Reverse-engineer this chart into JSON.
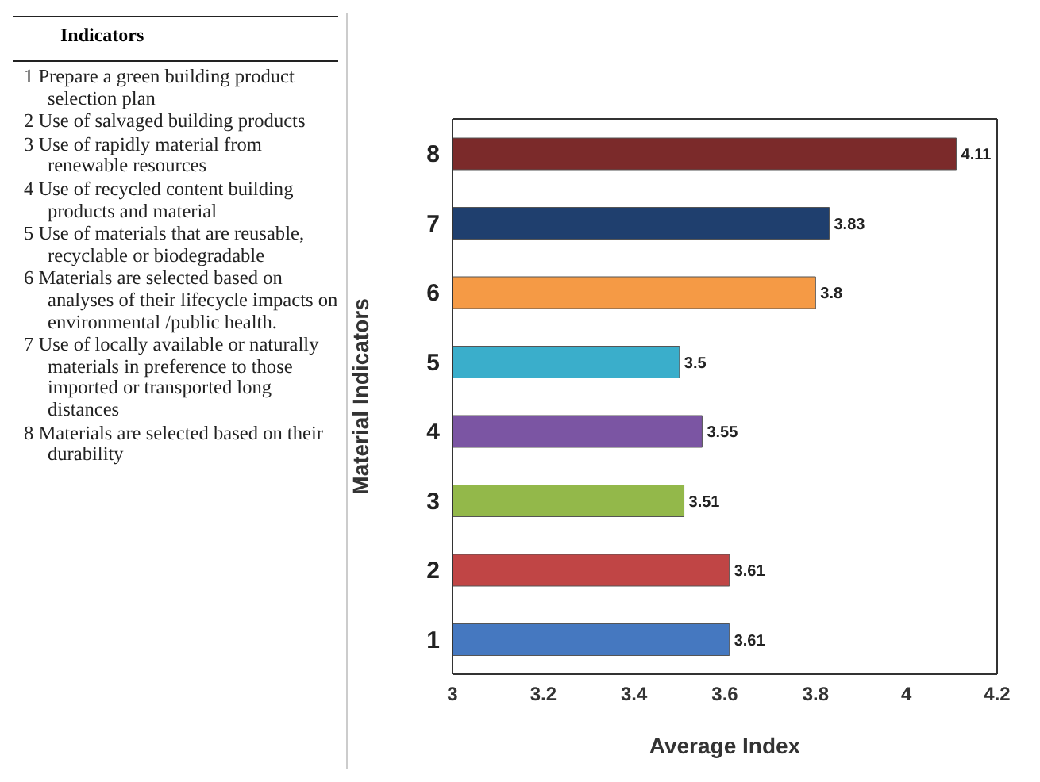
{
  "chart_data": {
    "type": "bar",
    "orientation": "horizontal",
    "xlabel": "Average Index",
    "ylabel": "Material Indicators",
    "categories": [
      "8",
      "7",
      "6",
      "5",
      "4",
      "3",
      "2",
      "1"
    ],
    "values": [
      4.11,
      3.83,
      3.8,
      3.5,
      3.55,
      3.51,
      3.61,
      3.61
    ],
    "colors": [
      "#7b2a2a",
      "#1f3f6e",
      "#f59a45",
      "#3aaecb",
      "#7b55a3",
      "#93b84a",
      "#c04545",
      "#4578c0"
    ],
    "data_labels": true,
    "xlim": [
      3,
      4.2
    ],
    "xticks": [
      3,
      3.2,
      3.4,
      3.6,
      3.8,
      4,
      4.2
    ],
    "grid": false,
    "legend": false,
    "legend_title": "Indicators",
    "annotations": [
      "1 Prepare a green building product selection plan",
      "2 Use of salvaged building  products",
      "3 Use of rapidly material from renewable resources",
      "4 Use of recycled content building products and material",
      "5 Use of materials that are reusable, recyclable or biodegradable",
      "6 Materials are selected based on analyses of their lifecycle impacts on environmental /public health.",
      "7 Use of locally available or naturally materials in preference to those imported or transported long distances",
      "8 Materials are selected based on their durability"
    ]
  }
}
